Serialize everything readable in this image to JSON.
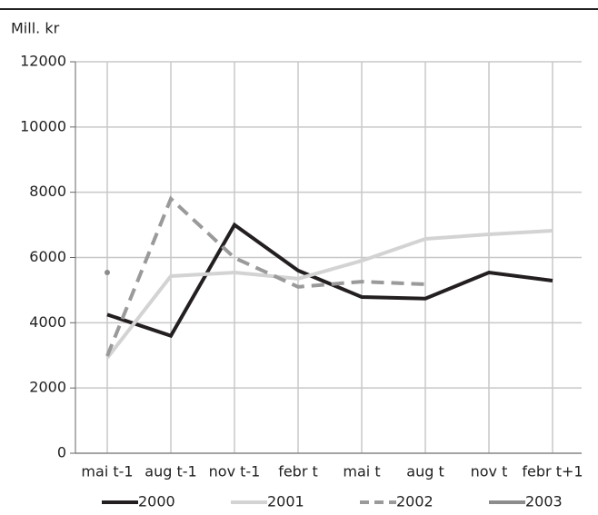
{
  "chart_data": {
    "type": "line",
    "y_label": "Mill. kr",
    "categories": [
      "mai t-1",
      "aug t-1",
      "nov t-1",
      "febr t",
      "mai  t",
      "aug  t",
      "nov  t",
      "febr t+1"
    ],
    "series": [
      {
        "name": "2000",
        "color": "#231f20",
        "dash": false,
        "values": [
          4250,
          3600,
          7000,
          5600,
          4790,
          4740,
          5540,
          5290
        ]
      },
      {
        "name": "2001",
        "color": "#d3d3d3",
        "dash": false,
        "values": [
          2920,
          5430,
          5540,
          5350,
          5900,
          6570,
          6710,
          6820
        ]
      },
      {
        "name": "2002",
        "color": "#9a9a9a",
        "dash": true,
        "values": [
          2980,
          7800,
          5990,
          5100,
          5260,
          5180,
          null,
          null
        ]
      },
      {
        "name": "2003",
        "color": "#8c8c8c",
        "dash": false,
        "values": [
          5540,
          null,
          null,
          null,
          null,
          null,
          null,
          null
        ]
      }
    ],
    "ylim": [
      0,
      12000
    ],
    "yticks": [
      0,
      2000,
      4000,
      6000,
      8000,
      10000,
      12000
    ],
    "grid": true
  }
}
